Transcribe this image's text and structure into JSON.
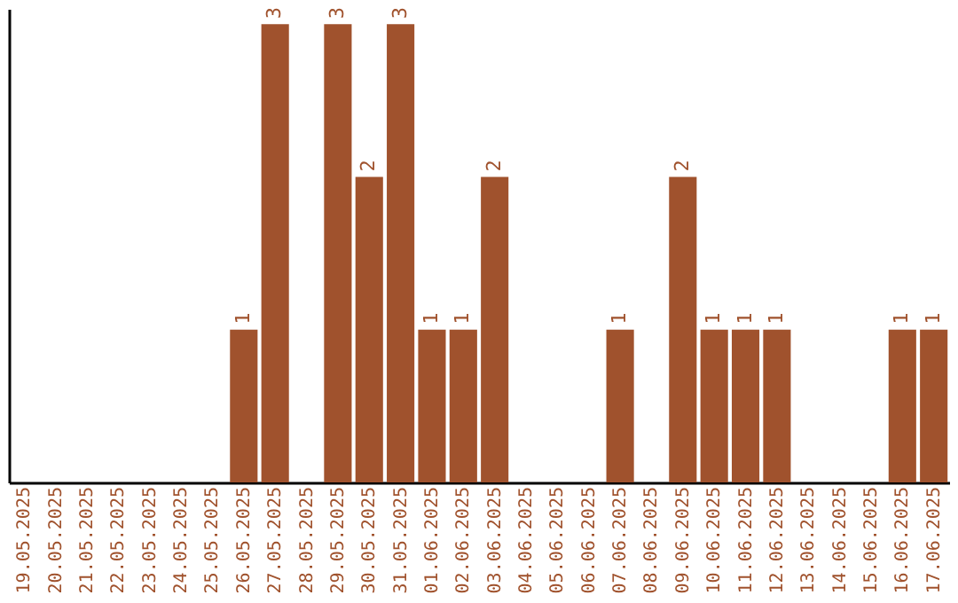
{
  "chart_data": {
    "type": "bar",
    "categories": [
      "19.05.2025",
      "20.05.2025",
      "21.05.2025",
      "22.05.2025",
      "23.05.2025",
      "24.05.2025",
      "25.05.2025",
      "26.05.2025",
      "27.05.2025",
      "28.05.2025",
      "29.05.2025",
      "30.05.2025",
      "31.05.2025",
      "01.06.2025",
      "02.06.2025",
      "03.06.2025",
      "04.06.2025",
      "05.06.2025",
      "06.06.2025",
      "07.06.2025",
      "08.06.2025",
      "09.06.2025",
      "10.06.2025",
      "11.06.2025",
      "12.06.2025",
      "13.06.2025",
      "14.06.2025",
      "15.06.2025",
      "16.06.2025",
      "17.06.2025"
    ],
    "values": [
      0,
      0,
      0,
      0,
      0,
      0,
      0,
      1,
      3,
      0,
      3,
      2,
      3,
      1,
      1,
      2,
      0,
      0,
      0,
      1,
      0,
      2,
      1,
      1,
      1,
      0,
      0,
      0,
      1,
      1
    ],
    "value_labels": [
      null,
      null,
      null,
      null,
      null,
      null,
      null,
      "1",
      "3",
      null,
      "3",
      "2",
      "3",
      "1",
      "1",
      "2",
      null,
      null,
      null,
      "1",
      null,
      "2",
      "1",
      "1",
      "1",
      null,
      null,
      null,
      "1",
      "1"
    ],
    "color": "#a0522d",
    "ylim": [
      0,
      3.1
    ],
    "tick_labels": "x",
    "grid": false
  }
}
